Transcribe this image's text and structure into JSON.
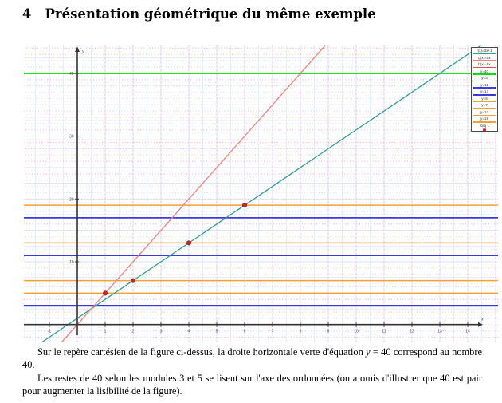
{
  "heading": {
    "number": "4",
    "title": "Présentation géométrique du même exemple"
  },
  "paragraphs": {
    "p1_before": "Sur le repère cartésien de la figure ci-dessus, la droite horizontale verte d'équation ",
    "p1_var": "y",
    "p1_after": " = 40 correspond au nombre 40.",
    "p2": "Les restes de 40 selon les modules 3 et 5 se lisent sur l'axe des ordonnées (on a omis d'illustrer que 40 est pair pour augmenter la lisibilité de la figure)."
  },
  "chart_data": {
    "type": "line",
    "title": "",
    "x_axis": {
      "label": "x",
      "ticks": [
        -1,
        1,
        2,
        3,
        4,
        5,
        6,
        7,
        8,
        9,
        10,
        11,
        12,
        13,
        14
      ],
      "range": [
        -1.9,
        15.1
      ]
    },
    "y_axis": {
      "label": "y",
      "ticks": [
        10,
        20,
        30,
        40
      ],
      "range": [
        -2.8,
        44.4
      ]
    },
    "diagonal_lines": [
      {
        "label": "f(x)=3x+1",
        "slope": 3,
        "intercept": 1,
        "color": "#2f9e96",
        "width": 1.3
      },
      {
        "label": "g(x)=5x",
        "slope": 5,
        "intercept": 0,
        "color": "#f2847c",
        "width": 1.3
      }
    ],
    "horizontal_lines": [
      {
        "y": 40,
        "color": "#00dd00",
        "width": 1.9
      },
      {
        "y": 19,
        "color": "#f5a033",
        "width": 1.5
      },
      {
        "y": 17,
        "color": "#3a3ae0",
        "width": 1.7
      },
      {
        "y": 13,
        "color": "#f5a033",
        "width": 1.5
      },
      {
        "y": 11,
        "color": "#3a3ae0",
        "width": 1.7
      },
      {
        "y": 7,
        "color": "#f5a033",
        "width": 1.5
      },
      {
        "y": 5,
        "color": "#f5a033",
        "width": 1.5
      },
      {
        "y": 3,
        "color": "#3a3ae0",
        "width": 2.3
      }
    ],
    "points": {
      "label": "Seq 1",
      "color": "#c62828",
      "data": [
        [
          1,
          5
        ],
        [
          2,
          7
        ],
        [
          4,
          13
        ],
        [
          6,
          19
        ]
      ]
    },
    "legend": [
      {
        "label": "f(x)=3x+1",
        "color": "#2f9e96",
        "marker": "line"
      },
      {
        "label": "g(x)=5x",
        "color": "#f2847c",
        "marker": "line"
      },
      {
        "label": "h(x)=5x",
        "color": "#e05050",
        "marker": "line"
      },
      {
        "label": "y=40",
        "color": "#00dd00",
        "marker": "line"
      },
      {
        "label": "y=3",
        "color": "#3a3ae0",
        "marker": "line"
      },
      {
        "label": "y=11",
        "color": "#3a3ae0",
        "marker": "line"
      },
      {
        "label": "y=17",
        "color": "#3a3ae0",
        "marker": "line"
      },
      {
        "label": "y=5",
        "color": "#f5a033",
        "marker": "line"
      },
      {
        "label": "y=7",
        "color": "#f5a033",
        "marker": "line"
      },
      {
        "label": "y=13",
        "color": "#f5a033",
        "marker": "line"
      },
      {
        "label": "y=19",
        "color": "#f5a033",
        "marker": "line"
      },
      {
        "label": "Seq 1",
        "color": "#d22222",
        "marker": "dot"
      }
    ],
    "background": {
      "row_palette": [
        "#f2a3cf",
        "#f2a3cf",
        "#c9b6e8",
        "#bccff2",
        "#d8d8d8",
        "#f6c690"
      ],
      "grid_vertical_color": "#dce9f8",
      "grid_dashed_vertical_color": "#efb5ec",
      "grid_horizontal_color": "#d2e2f6",
      "axis_color": "#333333",
      "tick_label_color": "#444444"
    }
  }
}
